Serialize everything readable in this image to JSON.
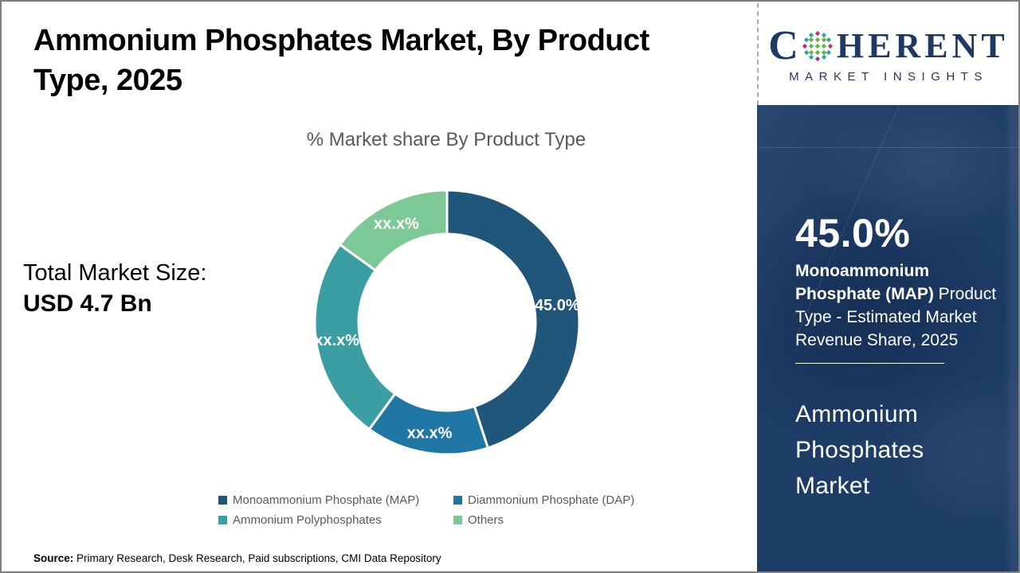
{
  "page": {
    "title": "Ammonium Phosphates Market, By Product Type, 2025",
    "source_label": "Source:",
    "source_text": " Primary Research, Desk Research, Paid subscriptions, CMI Data Repository"
  },
  "stats": {
    "total_label": "Total Market Size:",
    "total_value": "USD 4.7 Bn"
  },
  "logo": {
    "part1": "C",
    "part2": "HERENT",
    "subtitle": "MARKET INSIGHTS",
    "colors": {
      "navy": "#1f3864",
      "teal": "#2aa5a5",
      "green": "#62bb46",
      "magenta": "#c2268c"
    }
  },
  "sidebar": {
    "percent": "45.0%",
    "desc_bold": "Monoammonium Phosphate (MAP)",
    "desc_rest": " Product Type - Estimated Market Revenue Share, 2025",
    "market_name": "Ammonium Phosphates Market",
    "background_color": "#1d3c66"
  },
  "chart_data": {
    "type": "pie",
    "donut": true,
    "title": "% Market share By Product Type",
    "start_angle_deg": 0,
    "direction": "clockwise",
    "legend_position": "bottom",
    "segments": [
      {
        "name": "Monoammonium Phosphate (MAP)",
        "label": "45.0%",
        "value_pct": 45.0,
        "color": "#1f567a"
      },
      {
        "name": "Diammonium Phosphate (DAP)",
        "label": "xx.x%",
        "value_pct": 15.0,
        "color": "#2077a4"
      },
      {
        "name": "Ammonium Polyphosphates",
        "label": "xx.x%",
        "value_pct": 25.0,
        "color": "#3b9ea3"
      },
      {
        "name": "Others",
        "label": "xx.x%",
        "value_pct": 15.0,
        "color": "#7cc896"
      }
    ],
    "note": "Only the MAP share (45.0%) is disclosed; other segment values are masked as xx.x% in the figure. value_pct for masked segments is estimated from arc angles."
  }
}
